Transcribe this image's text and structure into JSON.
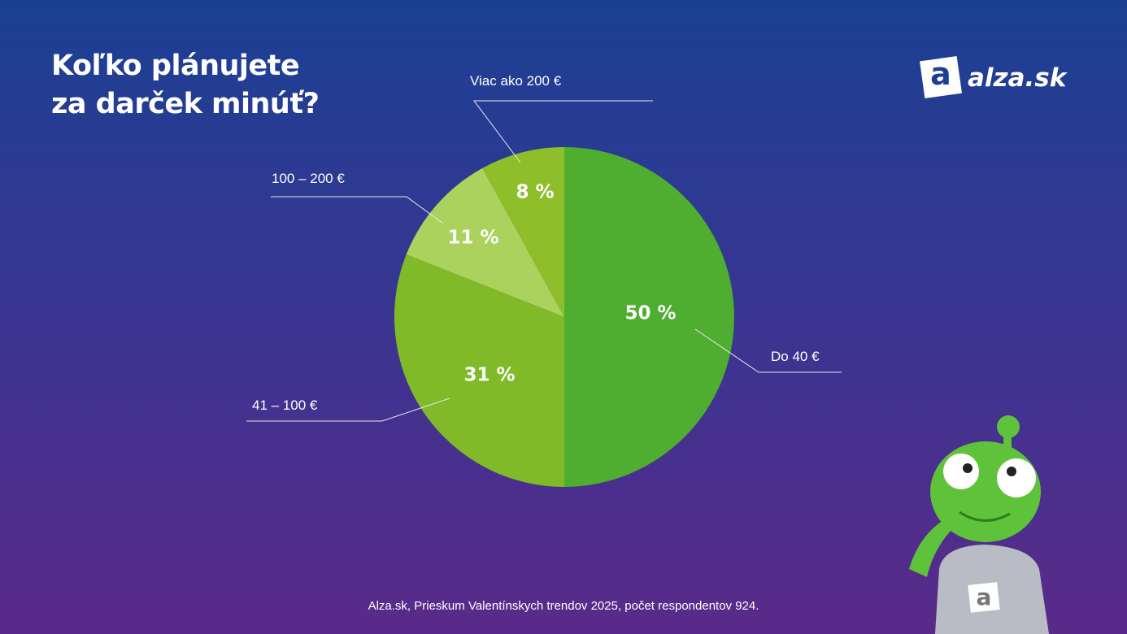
{
  "title": "Koľko plánujete za darček minúť?",
  "logo": {
    "icon": "a",
    "text": "alza.sk"
  },
  "source": "Alza.sk, Prieskum Valentínskych trendov 2025, počet respondentov 924.",
  "chart_data": {
    "type": "pie",
    "categories": [
      "Do 40 €",
      "41 – 100 €",
      "100 – 200 €",
      "Viac ako 200 €"
    ],
    "values": [
      50,
      31,
      11,
      8
    ],
    "value_labels": [
      "50 %",
      "31 %",
      "11 %",
      "8 %"
    ],
    "colors": [
      "#4fad30",
      "#80ba28",
      "#aad25c",
      "#8ebf2b"
    ]
  }
}
